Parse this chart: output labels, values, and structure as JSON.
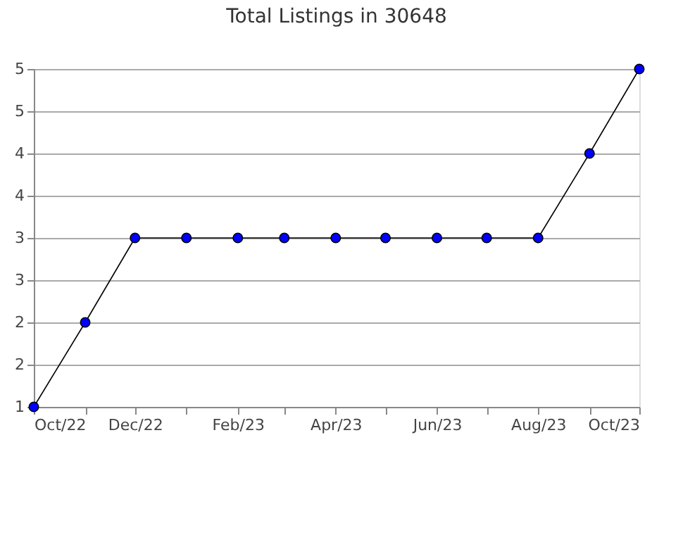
{
  "chart_data": {
    "type": "line",
    "title": "Total Listings in 30648",
    "x": [
      "2022-10",
      "2022-11",
      "2022-12",
      "2023-01",
      "2023-02",
      "2023-03",
      "2023-04",
      "2023-05",
      "2023-06",
      "2023-07",
      "2023-08",
      "2023-09",
      "2023-10"
    ],
    "series": [
      {
        "color": "#0000ff",
        "values": [
          1,
          2,
          3,
          3,
          3,
          3,
          3,
          3,
          3,
          3,
          3,
          4,
          5
        ]
      }
    ],
    "xlim": [
      "2022-10",
      "2023-10"
    ],
    "xticks": [
      {
        "value": "2022-10",
        "label": "Oct/22"
      },
      {
        "value": "2022-11",
        "label": null
      },
      {
        "value": "2022-12",
        "label": "Dec/22"
      },
      {
        "value": "2023-01",
        "label": null
      },
      {
        "value": "2023-02",
        "label": "Feb/23"
      },
      {
        "value": "2023-03",
        "label": null
      },
      {
        "value": "2023-04",
        "label": "Apr/23"
      },
      {
        "value": "2023-05",
        "label": null
      },
      {
        "value": "2023-06",
        "label": "Jun/23"
      },
      {
        "value": "2023-07",
        "label": null
      },
      {
        "value": "2023-08",
        "label": "Aug/23"
      },
      {
        "value": "2023-09",
        "label": null
      },
      {
        "value": "2023-10",
        "label": "Oct/23"
      }
    ],
    "ylim": [
      1,
      5
    ],
    "yticks": [
      1,
      {
        "value": 1.5,
        "label": "2"
      },
      2,
      {
        "value": 2.5,
        "label": "3"
      },
      3,
      {
        "value": 3.5,
        "label": "4"
      },
      4,
      {
        "value": 4.5,
        "label": "5"
      },
      5
    ],
    "grid": "y",
    "marker": "circle",
    "line_style": "solid"
  }
}
